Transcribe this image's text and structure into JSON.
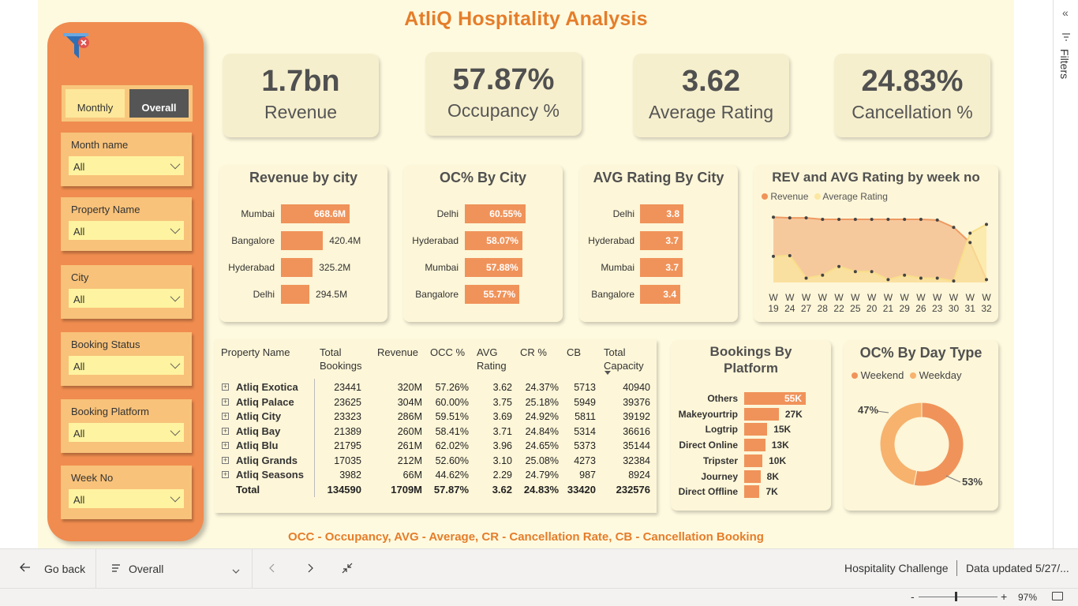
{
  "title": "AtliQ Hospitality Analysis",
  "toggle": {
    "monthly": "Monthly",
    "overall": "Overall"
  },
  "slicers": [
    {
      "label": "Month name",
      "value": "All"
    },
    {
      "label": "Property Name",
      "value": "All"
    },
    {
      "label": "City",
      "value": "All"
    },
    {
      "label": "Booking Status",
      "value": "All"
    },
    {
      "label": "Booking Platform",
      "value": "All"
    },
    {
      "label": "Week No",
      "value": "All"
    }
  ],
  "kpis": [
    {
      "value": "1.7bn",
      "label": "Revenue"
    },
    {
      "value": "57.87%",
      "label": "Occupancy %"
    },
    {
      "value": "3.62",
      "label": "Average Rating"
    },
    {
      "value": "24.83%",
      "label": "Cancellation %"
    }
  ],
  "colors": {
    "accent": "#e57d2a",
    "bar": "#f0935a",
    "panel": "#f08c4f",
    "light": "#fbe7a1"
  },
  "revenue_by_city": {
    "title": "Revenue by city",
    "categories": [
      "Mumbai",
      "Bangalore",
      "Hyderabad",
      "Delhi"
    ],
    "values": [
      668.6,
      420.4,
      325.2,
      294.5
    ],
    "labels": [
      "668.6M",
      "420.4M",
      "325.2M",
      "294.5M"
    ]
  },
  "oc_by_city": {
    "title": "OC% By City",
    "categories": [
      "Delhi",
      "Hyderabad",
      "Mumbai",
      "Bangalore"
    ],
    "values": [
      60.55,
      58.07,
      57.88,
      55.77
    ],
    "labels": [
      "60.55%",
      "58.07%",
      "57.88%",
      "55.77%"
    ]
  },
  "rating_by_city": {
    "title": "AVG Rating By City",
    "categories": [
      "Delhi",
      "Hyderabad",
      "Mumbai",
      "Bangalore"
    ],
    "values": [
      3.8,
      3.7,
      3.7,
      3.4
    ],
    "labels": [
      "3.8",
      "3.7",
      "3.7",
      "3.4"
    ]
  },
  "chart_data": [
    {
      "type": "area",
      "title": "REV and AVG Rating by week no",
      "categories": [
        "W 19",
        "W 24",
        "W 27",
        "W 28",
        "W 22",
        "W 25",
        "W 20",
        "W 21",
        "W 29",
        "W 26",
        "W 23",
        "W 30",
        "W 31",
        "W 32"
      ],
      "series": [
        {
          "name": "Revenue",
          "values": [
            0.9,
            0.89,
            0.89,
            0.87,
            0.87,
            0.87,
            0.87,
            0.87,
            0.87,
            0.87,
            0.86,
            0.76,
            0.55,
            0.04
          ]
        },
        {
          "name": "Average Rating",
          "values": [
            0.36,
            0.37,
            0.06,
            0.1,
            0.22,
            0.15,
            0.15,
            0.04,
            0.1,
            0.06,
            0.06,
            0.02,
            0.68,
            0.8
          ]
        }
      ],
      "legend": "top-left"
    },
    {
      "type": "bar",
      "title": "Bookings By Platform",
      "categories": [
        "Others",
        "Makeyourtrip",
        "Logtrip",
        "Direct Online",
        "Tripster",
        "Journey",
        "Direct Offline"
      ],
      "values": [
        55,
        27,
        15,
        13,
        10,
        8,
        7
      ],
      "labels": [
        "55K",
        "27K",
        "15K",
        "13K",
        "10K",
        "8K",
        "7K"
      ]
    },
    {
      "type": "pie",
      "title": "OC% By Day Type",
      "categories": [
        "Weekend",
        "Weekday"
      ],
      "values": [
        47,
        53
      ],
      "labels": [
        "47%",
        "53%"
      ],
      "legend": "top"
    }
  ],
  "table": {
    "headers": [
      "Property Name",
      "Total Bookings",
      "Revenue",
      "OCC %",
      "AVG Rating",
      "CR %",
      "CB",
      "Total Capacity"
    ],
    "rows": [
      [
        "Atliq Exotica",
        "23441",
        "320M",
        "57.26%",
        "3.62",
        "24.37%",
        "5713",
        "40940"
      ],
      [
        "Atliq Palace",
        "23625",
        "304M",
        "60.00%",
        "3.75",
        "25.18%",
        "5949",
        "39376"
      ],
      [
        "Atliq City",
        "23323",
        "286M",
        "59.51%",
        "3.69",
        "24.92%",
        "5811",
        "39192"
      ],
      [
        "Atliq Bay",
        "21389",
        "260M",
        "58.41%",
        "3.71",
        "24.84%",
        "5314",
        "36616"
      ],
      [
        "Atliq Blu",
        "21795",
        "261M",
        "62.02%",
        "3.96",
        "24.65%",
        "5373",
        "35144"
      ],
      [
        "Atliq Grands",
        "17035",
        "212M",
        "52.60%",
        "3.10",
        "25.08%",
        "4273",
        "32384"
      ],
      [
        "Atliq Seasons",
        "3982",
        "66M",
        "44.62%",
        "2.29",
        "24.79%",
        "987",
        "8924"
      ]
    ],
    "total": [
      "Total",
      "134590",
      "1709M",
      "57.87%",
      "3.62",
      "24.83%",
      "33420",
      "232576"
    ]
  },
  "footer_note": "OCC - Occupancy, AVG - Average, CR - Cancellation Rate, CB - Cancellation Booking",
  "bottombar": {
    "back": "Go back",
    "page": "Overall",
    "workspace": "Hospitality Challenge",
    "updated": "Data updated 5/27/..."
  },
  "statusbar": {
    "zoom": "97%",
    "minus": "-",
    "plus": "+"
  },
  "rightrail": {
    "filters": "Filters",
    "collapse": "«"
  }
}
